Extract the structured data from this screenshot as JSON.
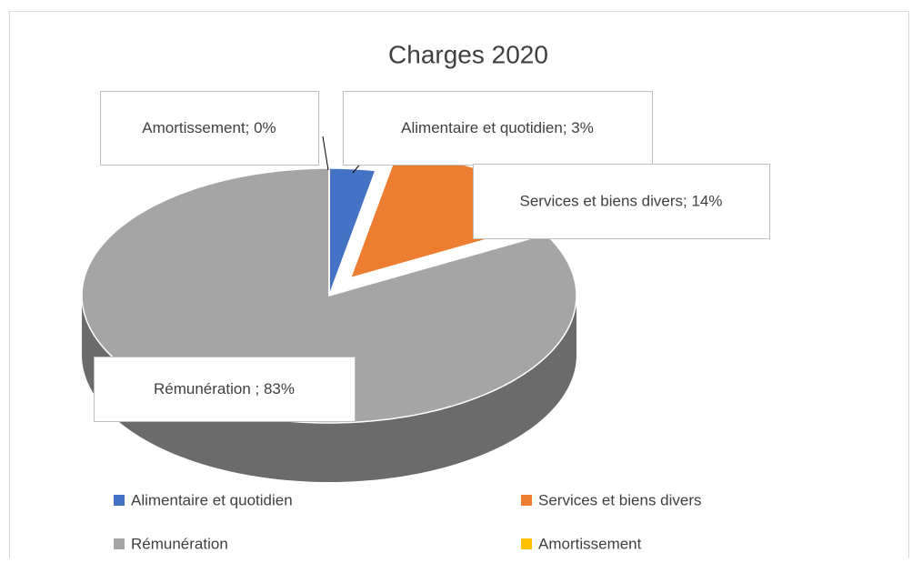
{
  "chart_data": {
    "type": "pie",
    "title": "Charges 2020",
    "categories": [
      "Alimentaire et quotidien",
      "Services et biens divers",
      "Rémunération",
      "Amortissement"
    ],
    "values": [
      3,
      14,
      83,
      0
    ],
    "value_labels": [
      "Alimentaire et quotidien; 3%",
      "Services et biens divers; 14%",
      "Rémunération ; 83%",
      "Amortissement; 0%"
    ],
    "colors": [
      "#4472c4",
      "#ed7d31",
      "#a5a5a5",
      "#ffc000"
    ],
    "legend": "bottom"
  }
}
